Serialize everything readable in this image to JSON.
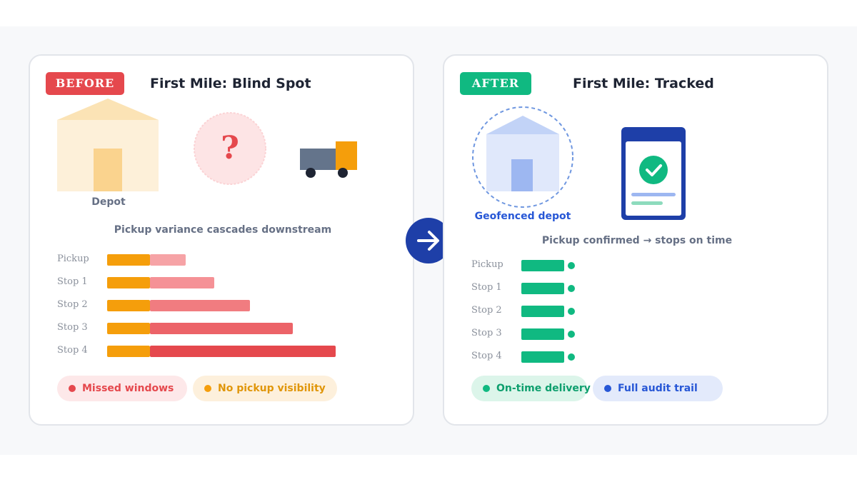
{
  "before": {
    "badge": "BEFORE",
    "title": "First Mile: Blind Spot",
    "depot_label": "Depot",
    "question_mark": "?",
    "caption": "Pickup variance cascades downstream",
    "rows": [
      {
        "label": "Pickup",
        "delay": 0.167
      },
      {
        "label": "Stop 1",
        "delay": 0.3
      },
      {
        "label": "Stop 2",
        "delay": 0.467
      },
      {
        "label": "Stop 3",
        "delay": 0.667
      },
      {
        "label": "Stop 4",
        "delay": 0.867
      }
    ],
    "pills": [
      {
        "label": "Missed windows",
        "dot_color": "#e5484d",
        "bg": "#fde8e9",
        "text_color": "#e5484d"
      },
      {
        "label": "No pickup visibility",
        "dot_color": "#f59e0b",
        "bg": "#fdf0dc",
        "text_color": "#e0960a"
      }
    ]
  },
  "after": {
    "badge": "AFTER",
    "title": "First Mile: Tracked",
    "depot_label": "Geofenced depot",
    "caption": "Pickup confirmed → stops on time",
    "rows": [
      {
        "label": "Pickup"
      },
      {
        "label": "Stop 1"
      },
      {
        "label": "Stop 2"
      },
      {
        "label": "Stop 3"
      },
      {
        "label": "Stop 4"
      }
    ],
    "pills": [
      {
        "label": "On-time delivery",
        "dot_color": "#10b981",
        "bg": "#dcf5ea",
        "text_color": "#0e9f6e"
      },
      {
        "label": "Full audit trail",
        "dot_color": "#2757d6",
        "bg": "#e3eafb",
        "text_color": "#2757d6"
      }
    ]
  },
  "colors": {
    "before_badge": "#e5484d",
    "after_badge": "#10b981",
    "base_bar": "#f59e0b",
    "on_time_bar": "#10b981",
    "delay_bars": [
      "#f6a3a6",
      "#f59196",
      "#f17c80",
      "#ec6368",
      "#e5484d"
    ],
    "arrow_bg": "#1e3fa8",
    "geofence": "#6f97e0"
  },
  "icons": {
    "divider": "arrow-right-icon",
    "before_middle": "question-icon",
    "before_right": "truck-icon",
    "after_right": "phone-check-icon"
  }
}
